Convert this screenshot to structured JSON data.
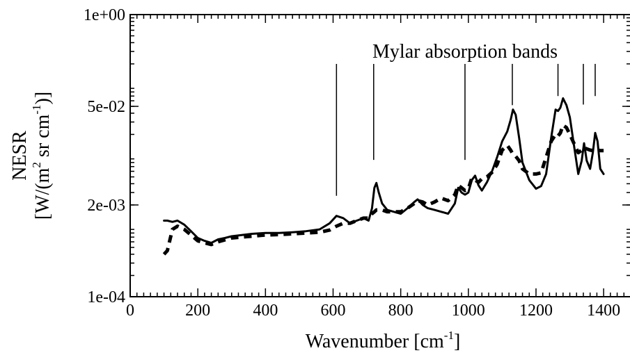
{
  "chart_data": {
    "type": "line",
    "title": "",
    "xlabel": {
      "main": "Wavenumber [cm",
      "sup": "-1",
      "close": "]"
    },
    "ylabel": {
      "line1": "NESR",
      "line2_parts": [
        "[W/(m",
        "2",
        " sr cm",
        "-1",
        ")]"
      ]
    },
    "xlim": [
      0,
      1480
    ],
    "ylim": [
      0.0001,
      1
    ],
    "yscale": "log",
    "grid": false,
    "legend": "none",
    "x_ticks": [
      0,
      200,
      400,
      600,
      800,
      1000,
      1200,
      1400
    ],
    "x_tick_labels": [
      "0",
      "200",
      "400",
      "600",
      "800",
      "1000",
      "1200",
      "1400"
    ],
    "y_ticks": [
      1,
      0.05,
      0.002,
      0.0001
    ],
    "y_tick_labels": [
      "1e+00",
      "5e-02",
      "2e-03",
      "1e-04"
    ],
    "annotation": {
      "text": "Mylar absorption bands",
      "band_positions": [
        610,
        720,
        990,
        1130,
        1265,
        1340,
        1375
      ],
      "band_top": 0.2,
      "band_bottoms": [
        0.0027,
        0.0087,
        0.0087,
        0.052,
        0.07,
        0.053,
        0.07
      ]
    },
    "series": [
      {
        "style": "solid",
        "x": [
          100,
          110,
          125,
          140,
          160,
          180,
          200,
          220,
          240,
          260,
          280,
          300,
          330,
          360,
          400,
          440,
          480,
          520,
          560,
          590,
          610,
          630,
          650,
          670,
          690,
          705,
          715,
          722,
          728,
          735,
          745,
          760,
          780,
          800,
          820,
          840,
          850,
          865,
          880,
          900,
          920,
          940,
          960,
          970,
          980,
          990,
          1000,
          1010,
          1020,
          1030,
          1040,
          1055,
          1070,
          1085,
          1100,
          1115,
          1125,
          1132,
          1140,
          1150,
          1160,
          1180,
          1200,
          1215,
          1230,
          1245,
          1258,
          1265,
          1272,
          1280,
          1290,
          1300,
          1315,
          1325,
          1335,
          1342,
          1350,
          1360,
          1368,
          1375,
          1382,
          1390,
          1400
        ],
        "y": [
          0.0012,
          0.0012,
          0.00115,
          0.0012,
          0.00105,
          0.00085,
          0.00068,
          0.00062,
          0.00058,
          0.00065,
          0.00068,
          0.00072,
          0.00075,
          0.00078,
          0.0008,
          0.0008,
          0.00082,
          0.00085,
          0.0009,
          0.0011,
          0.0014,
          0.0013,
          0.0011,
          0.0012,
          0.0013,
          0.0012,
          0.0018,
          0.0035,
          0.0041,
          0.003,
          0.0021,
          0.0017,
          0.0016,
          0.0015,
          0.0018,
          0.0022,
          0.0024,
          0.002,
          0.0018,
          0.0017,
          0.0016,
          0.0015,
          0.0021,
          0.0035,
          0.003,
          0.0028,
          0.003,
          0.0045,
          0.0052,
          0.0038,
          0.0032,
          0.0042,
          0.006,
          0.0095,
          0.016,
          0.022,
          0.032,
          0.045,
          0.038,
          0.018,
          0.008,
          0.0045,
          0.0034,
          0.0037,
          0.0055,
          0.018,
          0.045,
          0.043,
          0.048,
          0.065,
          0.052,
          0.035,
          0.0115,
          0.0055,
          0.0085,
          0.015,
          0.0085,
          0.0065,
          0.011,
          0.021,
          0.016,
          0.0065,
          0.0055
        ]
      },
      {
        "style": "dashed",
        "x": [
          100,
          110,
          125,
          140,
          160,
          180,
          200,
          220,
          240,
          260,
          280,
          300,
          330,
          360,
          400,
          440,
          480,
          520,
          560,
          590,
          610,
          630,
          650,
          670,
          690,
          705,
          715,
          722,
          728,
          735,
          745,
          760,
          780,
          800,
          820,
          840,
          850,
          865,
          880,
          900,
          920,
          940,
          960,
          970,
          980,
          990,
          1000,
          1010,
          1020,
          1030,
          1040,
          1055,
          1070,
          1085,
          1100,
          1115,
          1125,
          1132,
          1140,
          1150,
          1160,
          1180,
          1200,
          1215,
          1230,
          1245,
          1258,
          1265,
          1272,
          1280,
          1290,
          1300,
          1315,
          1325,
          1335,
          1342,
          1350,
          1360,
          1368,
          1375,
          1382,
          1390,
          1400
        ],
        "y": [
          0.0004,
          0.00045,
          0.0009,
          0.001,
          0.0009,
          0.00075,
          0.00062,
          0.00058,
          0.00055,
          0.0006,
          0.00064,
          0.00068,
          0.0007,
          0.00072,
          0.00075,
          0.00076,
          0.00078,
          0.0008,
          0.00082,
          0.00088,
          0.001,
          0.0011,
          0.0011,
          0.0012,
          0.0013,
          0.0013,
          0.0015,
          0.0016,
          0.0017,
          0.0017,
          0.0017,
          0.0016,
          0.0016,
          0.0016,
          0.0018,
          0.0021,
          0.0023,
          0.0022,
          0.002,
          0.0022,
          0.0025,
          0.0023,
          0.0028,
          0.0038,
          0.0035,
          0.0032,
          0.0034,
          0.0048,
          0.0045,
          0.0042,
          0.0047,
          0.005,
          0.0058,
          0.0075,
          0.012,
          0.014,
          0.012,
          0.0105,
          0.0098,
          0.0085,
          0.0065,
          0.0055,
          0.0055,
          0.0057,
          0.0095,
          0.016,
          0.02,
          0.019,
          0.021,
          0.027,
          0.025,
          0.02,
          0.014,
          0.011,
          0.012,
          0.013,
          0.0125,
          0.012,
          0.0118,
          0.012,
          0.012,
          0.0118,
          0.0118
        ]
      }
    ]
  }
}
